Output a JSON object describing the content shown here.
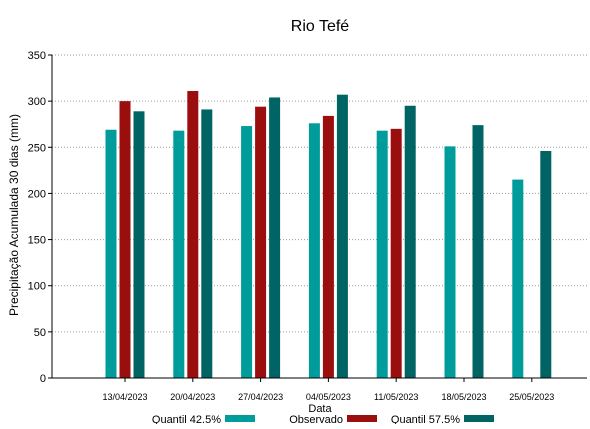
{
  "chart_data": {
    "type": "bar",
    "title": "Rio Tefé",
    "xlabel": "Data",
    "ylabel": "Precipitação Acumulada 30 dias (mm)",
    "ylim": [
      0,
      350
    ],
    "yticks": [
      0,
      50,
      100,
      150,
      200,
      250,
      300,
      350
    ],
    "grid": true,
    "legend_position": "bottom",
    "categories": [
      "13/04/2023",
      "20/04/2023",
      "27/04/2023",
      "04/05/2023",
      "11/05/2023",
      "18/05/2023",
      "25/05/2023"
    ],
    "series": [
      {
        "name": "Quantil 42.5%",
        "color": "#009b9b",
        "values": [
          269,
          268,
          273,
          276,
          268,
          251,
          215
        ]
      },
      {
        "name": "Observado",
        "color": "#9b0e0e",
        "values": [
          300,
          311,
          294,
          284,
          270,
          null,
          null
        ]
      },
      {
        "name": "Quantil 57.5%",
        "color": "#006464",
        "values": [
          289,
          291,
          304,
          307,
          295,
          274,
          246
        ]
      }
    ]
  }
}
